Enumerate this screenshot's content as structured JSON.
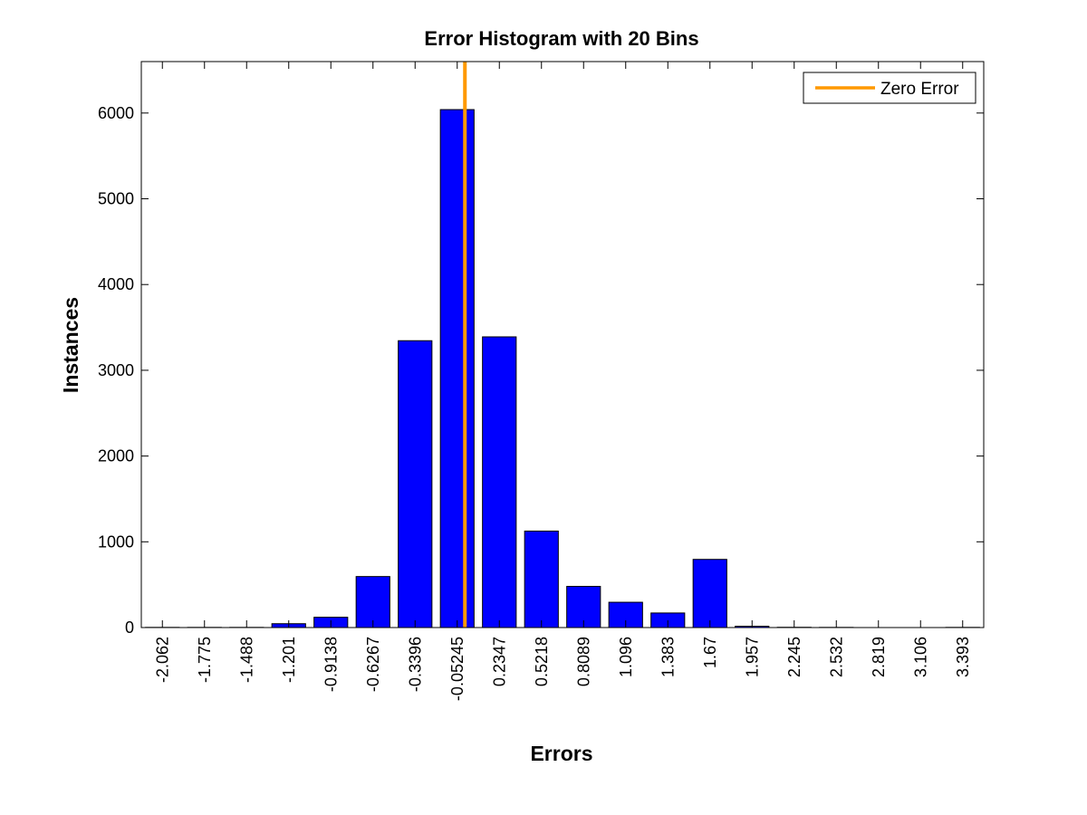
{
  "chart_data": {
    "type": "bar",
    "title": "Error Histogram with 20 Bins",
    "xlabel": "Errors",
    "ylabel": "Instances",
    "categories": [
      "-2.062",
      "-1.775",
      "-1.488",
      "-1.201",
      "-0.9138",
      "-0.6267",
      "-0.3396",
      "-0.05245",
      "0.2347",
      "0.5218",
      "0.8089",
      "1.096",
      "1.383",
      "1.67",
      "1.957",
      "2.245",
      "2.532",
      "2.819",
      "3.106",
      "3.393"
    ],
    "series": [
      {
        "values": [
          2,
          2,
          2,
          45,
          120,
          595,
          3345,
          6040,
          3390,
          1125,
          480,
          295,
          170,
          795,
          15,
          3,
          2,
          0,
          0,
          2
        ],
        "color": "#0000ff"
      }
    ],
    "ylim": [
      0,
      6600
    ],
    "yticks": [
      0,
      1000,
      2000,
      3000,
      4000,
      5000,
      6000
    ],
    "reference_line": {
      "name": "Zero Error",
      "x": 0,
      "color": "#ff9900"
    },
    "legend": {
      "position": "top-right",
      "entries": [
        "Zero Error"
      ]
    },
    "grid": false
  }
}
